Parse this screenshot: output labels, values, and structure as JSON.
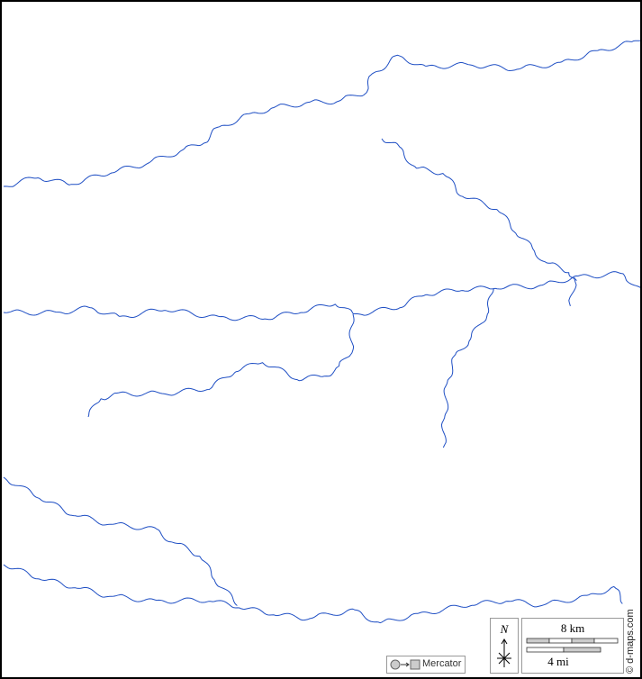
{
  "map": {
    "river_color": "#1f4fc4",
    "north_label": "N",
    "scale": {
      "km_label": "8 km",
      "mi_label": "4 mi"
    },
    "projection": {
      "label": "Mercator",
      "icon": "circle-to-square-icon"
    },
    "credit": "© d-maps.com"
  }
}
